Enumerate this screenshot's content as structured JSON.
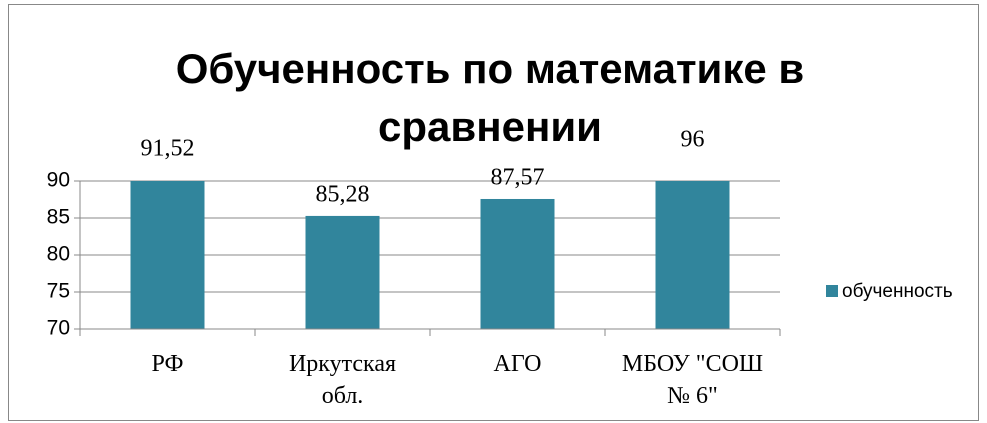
{
  "chart_data": {
    "type": "bar",
    "title": "Обученность по математике в сравнении",
    "categories": [
      "РФ",
      "Иркутская обл.",
      "АГО",
      "МБОУ \"СОШ № 6\""
    ],
    "series": [
      {
        "name": "обученность",
        "color": "#31859c",
        "values": [
          91.52,
          85.28,
          87.57,
          96
        ],
        "value_labels": [
          "91,52",
          "85,28",
          "87,57",
          "96"
        ]
      }
    ],
    "ylim": [
      70,
      90
    ],
    "yticks": [
      70,
      75,
      80,
      85,
      90
    ],
    "grid": true,
    "legend": "right"
  }
}
